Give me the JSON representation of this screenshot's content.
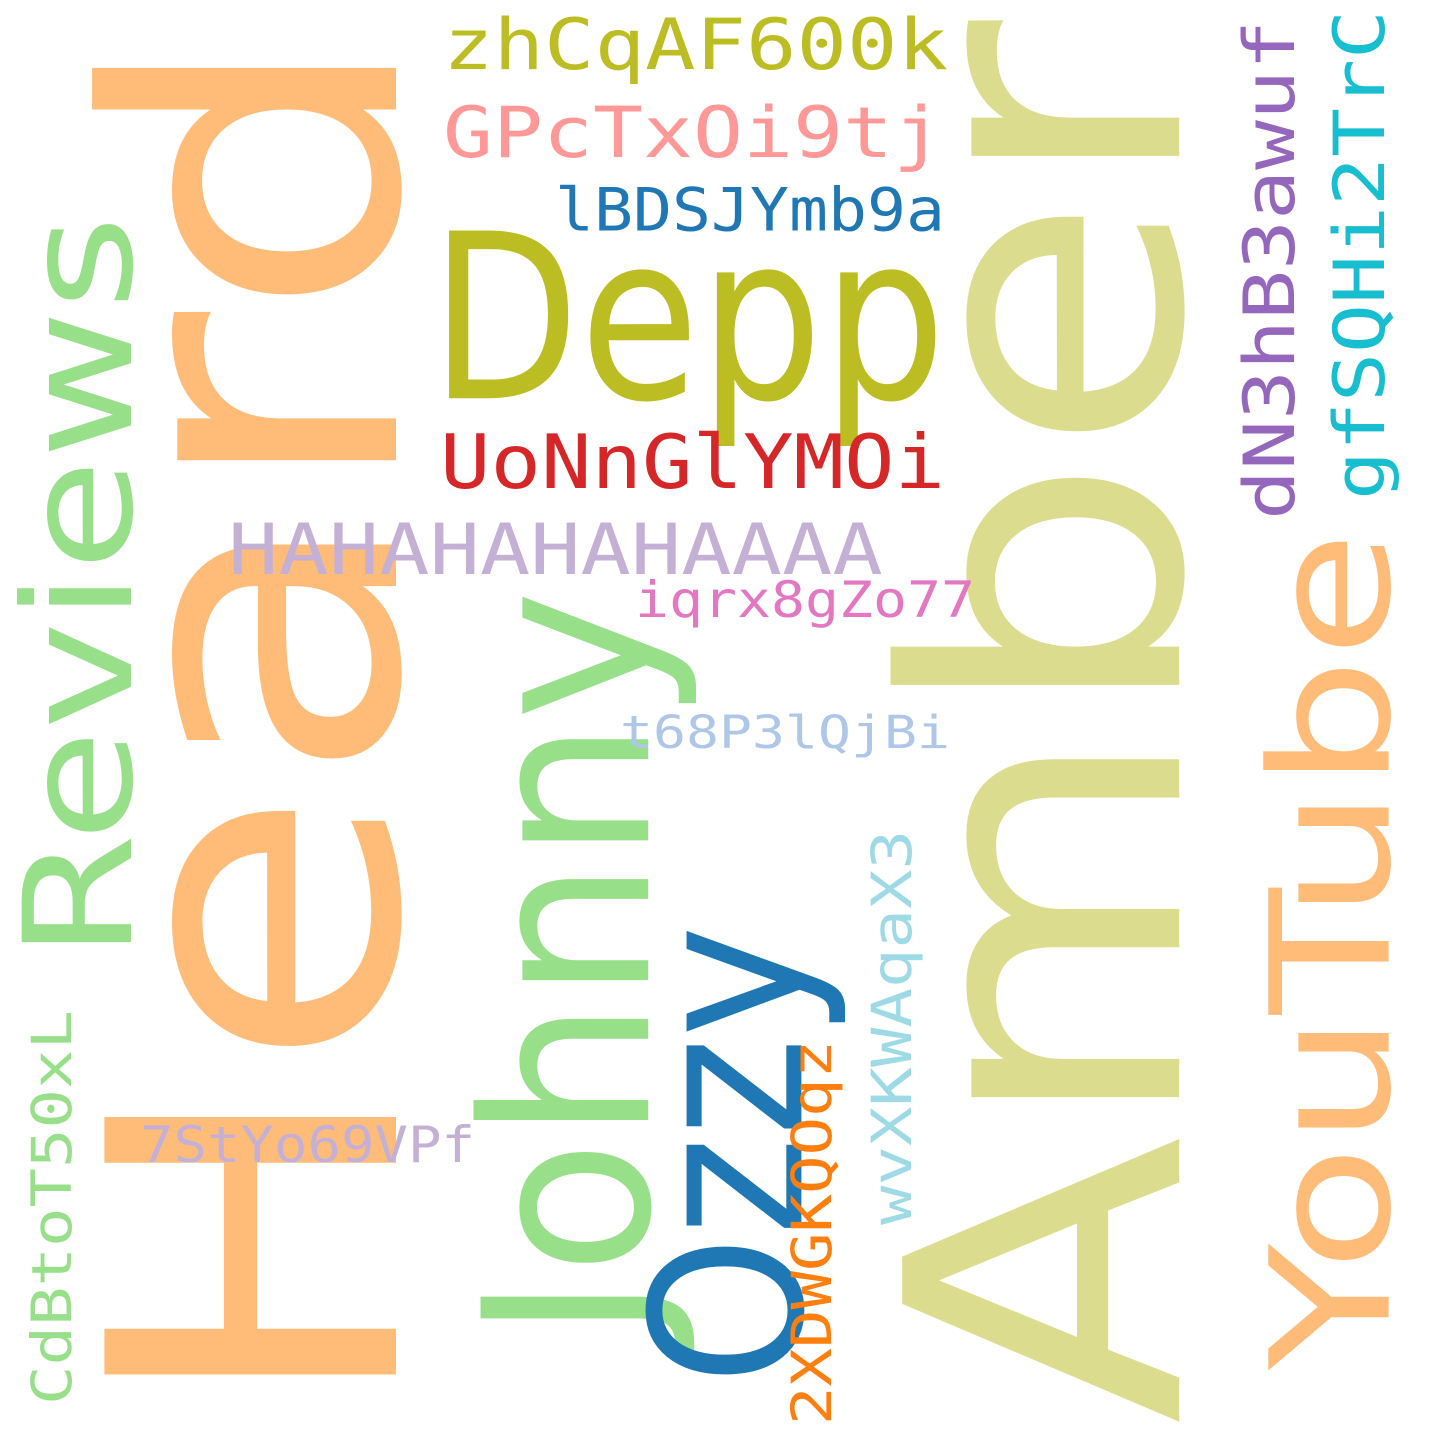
{
  "background": "#ffffff",
  "words": [
    {
      "id": "amber",
      "text": "Amber",
      "color": "#dbdc8d",
      "vertical": true
    },
    {
      "id": "heard",
      "text": "Heard",
      "color": "#ffbc79",
      "vertical": true
    },
    {
      "id": "depp",
      "text": "Depp",
      "color": "#bcbd22",
      "vertical": false
    },
    {
      "id": "reviews",
      "text": "Reviews",
      "color": "#98df8a",
      "vertical": true
    },
    {
      "id": "johnny",
      "text": "Johnny",
      "color": "#98df8a",
      "vertical": true
    },
    {
      "id": "youtube",
      "text": "YouTube",
      "color": "#ffbb78",
      "vertical": true
    },
    {
      "id": "ozzy",
      "text": "Ozzy",
      "color": "#1f77b4",
      "vertical": true
    },
    {
      "id": "w-zhcq",
      "text": "zhCqAF600k",
      "color": "#bcbd22",
      "vertical": false
    },
    {
      "id": "w-gpct",
      "text": "GPcTxOi9tj",
      "color": "#ff9896",
      "vertical": false
    },
    {
      "id": "w-lbds",
      "text": "lBDSJYmb9a",
      "color": "#1f77b4",
      "vertical": false
    },
    {
      "id": "w-uonn",
      "text": "UoNnGlYMOi",
      "color": "#d62728",
      "vertical": false
    },
    {
      "id": "w-haha",
      "text": "HAHAHAHAHAAAA",
      "color": "#c5b0d5",
      "vertical": false
    },
    {
      "id": "w-iqrx",
      "text": "iqrx8gZo77",
      "color": "#e377c2",
      "vertical": false
    },
    {
      "id": "w-t68p",
      "text": "t68P3lQjBi",
      "color": "#aec7e8",
      "vertical": false
    },
    {
      "id": "w-7sty",
      "text": "7StYo69VPf",
      "color": "#c5b0d5",
      "vertical": false
    },
    {
      "id": "w-dn3h",
      "text": "dN3hB3awuf",
      "color": "#9467bd",
      "vertical": true
    },
    {
      "id": "w-gfsq",
      "text": "gfSQHi2TrC",
      "color": "#17becf",
      "vertical": true
    },
    {
      "id": "w-cdbt",
      "text": "CdBtoT50xL",
      "color": "#98df8a",
      "vertical": true
    },
    {
      "id": "w-wvxk",
      "text": "wvXKWAqaX3",
      "color": "#9edae5",
      "vertical": true
    },
    {
      "id": "w-2xdw",
      "text": "2XDWGKQOqz",
      "color": "#ff7f0e",
      "vertical": true
    }
  ]
}
